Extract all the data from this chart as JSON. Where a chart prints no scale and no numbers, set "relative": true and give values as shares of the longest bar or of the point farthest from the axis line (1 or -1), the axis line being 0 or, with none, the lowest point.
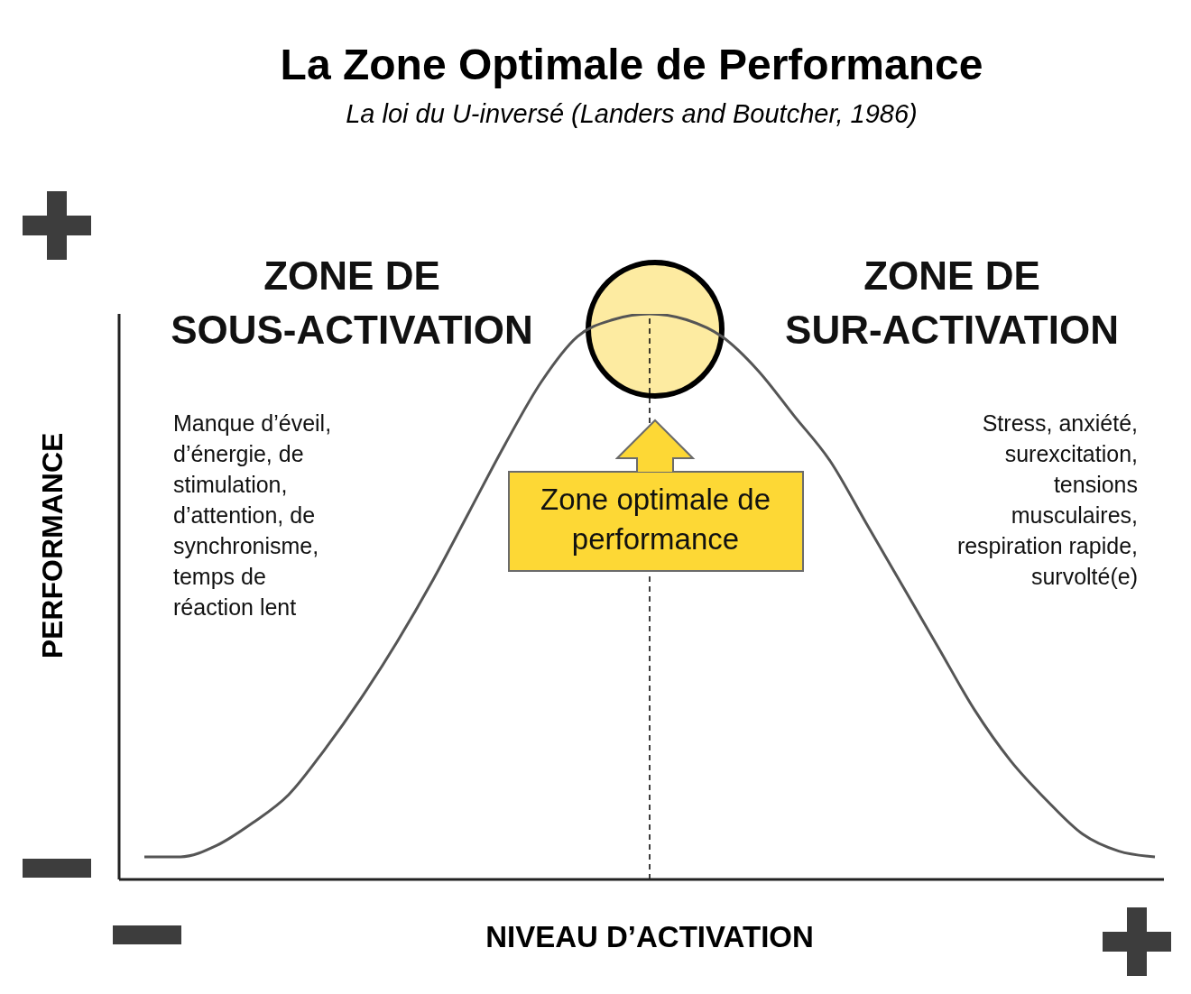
{
  "chart_data": {
    "type": "line",
    "title": "La Zone Optimale de Performance",
    "subtitle": "La loi du U-inversé (Landers and Boutcher, 1986)",
    "xlabel": "NIVEAU D’ACTIVATION",
    "ylabel": "PERFORMANCE",
    "relative": true,
    "categories": [
      null,
      null,
      null,
      null,
      null,
      null,
      null,
      null,
      null,
      null,
      null,
      null,
      null,
      null,
      null,
      null,
      null,
      null,
      null,
      null,
      null,
      null,
      null,
      null,
      null,
      null,
      null,
      null,
      null
    ],
    "series": [
      {
        "color": "#555555",
        "values": [
          0.04,
          0.04,
          0.06,
          0.1,
          0.15,
          0.23,
          0.32,
          0.42,
          0.53,
          0.65,
          0.77,
          0.88,
          0.96,
          0.99,
          1,
          0.99,
          0.96,
          0.9,
          0.82,
          0.74,
          0.63,
          0.52,
          0.41,
          0.3,
          0.21,
          0.14,
          0.08,
          0.05,
          0.04
        ]
      }
    ],
    "annotations": [
      "ZONE DE\nSOUS-ACTIVATION",
      "ZONE DE\nSUR-ACTIVATION",
      "Manque d’éveil,\nd’énergie, de\nstimulation,\nd’attention, de\nsynchronisme,\ntemps de\nréaction lent",
      "Stress, anxiété,\nsurexcitation,\ntensions\nmusculaires,\nrespiration rapide,\nsurvolté(e)",
      "Zone optimale de\nperformance"
    ]
  }
}
